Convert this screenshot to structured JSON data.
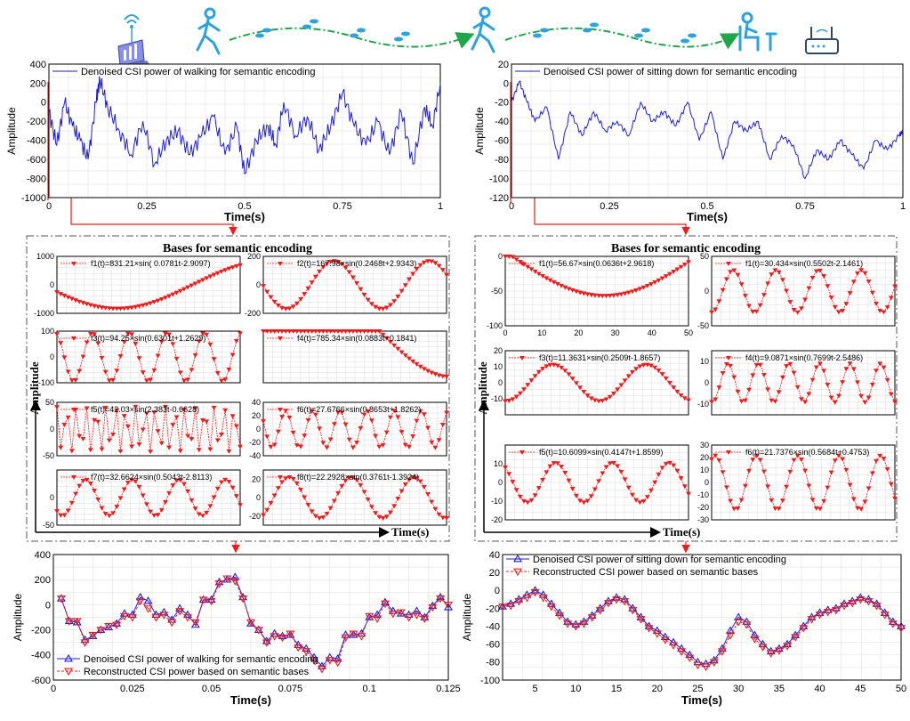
{
  "colors": {
    "blue": "#1f1fd6",
    "red": "#ee1c1c",
    "icon_blue": "#2ba3dd",
    "path_green": "#1fa64a",
    "grid": "#dcdcdc"
  },
  "icons": [
    "laptop-wifi-icon",
    "walking-person-icon",
    "footprints-icon",
    "walking-person-icon",
    "footprints-icon",
    "sitting-person-icon",
    "wifi-router-icon"
  ],
  "left_group_title": "Bases for semantic encoding",
  "right_group_title": "Bases for semantic encoding",
  "left_group_ylabel": "Amplitude",
  "left_group_xlabel": "Time(s)",
  "right_group_ylabel": "Amplitude",
  "right_group_xlabel": "Time(s)",
  "chart_data": [
    {
      "id": "top-left",
      "type": "line",
      "xlabel": "Time(s)",
      "ylabel": "Amplitude",
      "xlim": [
        0,
        1
      ],
      "ylim": [
        -1000,
        400
      ],
      "xticks": [
        "0",
        "0.25",
        "0.5",
        "0.75",
        "1"
      ],
      "yticks": [
        "400",
        "200",
        "0",
        "-200",
        "-400",
        "-600",
        "-800",
        "-1000"
      ],
      "grid": true,
      "legend_position": "top-left",
      "series": [
        {
          "name": "Denoised CSI power of walking for semantic encoding",
          "color": "#1f1fd6",
          "x": [
            0,
            0.02,
            0.04,
            0.06,
            0.08,
            0.1,
            0.12,
            0.13,
            0.15,
            0.18,
            0.21,
            0.24,
            0.27,
            0.3,
            0.33,
            0.36,
            0.39,
            0.42,
            0.45,
            0.48,
            0.5,
            0.53,
            0.56,
            0.58,
            0.6,
            0.63,
            0.66,
            0.69,
            0.72,
            0.75,
            0.78,
            0.81,
            0.84,
            0.87,
            0.9,
            0.93,
            0.96,
            0.98,
            1.0
          ],
          "y": [
            -100,
            -450,
            0,
            -250,
            -400,
            -600,
            0,
            240,
            -50,
            -300,
            -550,
            -200,
            -650,
            -400,
            -300,
            -550,
            -350,
            -150,
            -550,
            -250,
            -750,
            -400,
            -250,
            -450,
            0,
            -350,
            -150,
            -500,
            -250,
            100,
            -250,
            -450,
            -200,
            -550,
            -100,
            -650,
            -50,
            -250,
            200
          ]
        }
      ]
    },
    {
      "id": "top-right",
      "type": "line",
      "xlabel": "Time(s)",
      "ylabel": "Amplitude",
      "xlim": [
        0,
        1
      ],
      "ylim": [
        -120,
        20
      ],
      "xticks": [
        "0",
        "0.25",
        "0.5",
        "0.75",
        "1"
      ],
      "yticks": [
        "20",
        "0",
        "-20",
        "-40",
        "-60",
        "-80",
        "-100",
        "-120"
      ],
      "grid": true,
      "legend_position": "top-left",
      "series": [
        {
          "name": "Denoised CSI power of sitting down for semantic encoding",
          "color": "#1f1fd6",
          "x": [
            0,
            0.02,
            0.04,
            0.06,
            0.09,
            0.12,
            0.15,
            0.18,
            0.21,
            0.24,
            0.27,
            0.3,
            0.33,
            0.36,
            0.39,
            0.42,
            0.45,
            0.48,
            0.51,
            0.54,
            0.57,
            0.6,
            0.63,
            0.66,
            0.69,
            0.72,
            0.75,
            0.78,
            0.81,
            0.84,
            0.87,
            0.9,
            0.93,
            0.96,
            0.99,
            1.0
          ],
          "y": [
            -20,
            2,
            -20,
            -40,
            -25,
            -80,
            -30,
            -55,
            -30,
            -50,
            -40,
            -55,
            -20,
            -40,
            -30,
            -45,
            -20,
            -60,
            -30,
            -80,
            -40,
            -50,
            -40,
            -80,
            -55,
            -65,
            -100,
            -70,
            -80,
            -60,
            -75,
            -90,
            -60,
            -70,
            -55,
            -50
          ]
        }
      ]
    },
    {
      "id": "bl-f1",
      "type": "line",
      "ylim": [
        -1000,
        1000
      ],
      "yticks": [
        "1000",
        "0",
        "-1000"
      ],
      "grid": true,
      "series": [
        {
          "name": "f1(t)=831.21×sin( 0.0781t-2.9097)",
          "A": 831.21,
          "w": 0.0781,
          "p": -2.9097,
          "n": 50,
          "color": "#ee1c1c"
        }
      ]
    },
    {
      "id": "bl-f2",
      "type": "line",
      "ylim": [
        -200,
        200
      ],
      "yticks": [
        "200",
        "0",
        "-200"
      ],
      "grid": true,
      "series": [
        {
          "name": "f2(t)=167.98×sin(0.2468t+2.9343)",
          "A": 167.98,
          "w": 0.2468,
          "p": 2.9343,
          "n": 50,
          "color": "#ee1c1c"
        }
      ]
    },
    {
      "id": "bl-f3",
      "type": "line",
      "ylim": [
        -100,
        100
      ],
      "yticks": [
        "100",
        "0",
        "-100"
      ],
      "grid": true,
      "series": [
        {
          "name": "f3(t)=94.25×sin(0.6301t+1.2629)",
          "A": 94.25,
          "w": 0.6301,
          "p": 1.2629,
          "n": 50,
          "color": "#ee1c1c"
        }
      ]
    },
    {
      "id": "bl-f4",
      "type": "line",
      "ylim": [
        -900,
        100
      ],
      "yticks": [],
      "grid": true,
      "series": [
        {
          "name": "f4(t)=785.34×sin(0.0883t+0.1841)",
          "A": 785.34,
          "w": 0.0883,
          "p": 0.1841,
          "n": 50,
          "color": "#ee1c1c"
        }
      ]
    },
    {
      "id": "bl-f5",
      "type": "line",
      "ylim": [
        -50,
        50
      ],
      "yticks": [
        "50",
        "0",
        "-50"
      ],
      "grid": true,
      "series": [
        {
          "name": "f5(t)=42.03×sin(2.383t-0.6628)",
          "A": 42.03,
          "w": 2.383,
          "p": -0.6628,
          "n": 50,
          "color": "#ee1c1c"
        }
      ]
    },
    {
      "id": "bl-f6",
      "type": "line",
      "ylim": [
        -40,
        40
      ],
      "yticks": [
        "40",
        "20",
        "0",
        "-20",
        "-40"
      ],
      "grid": true,
      "series": [
        {
          "name": "f6(t)=27.6766×sin(0.8653t+1.8262)",
          "A": 27.6766,
          "w": 0.8653,
          "p": 1.8262,
          "n": 50,
          "color": "#ee1c1c"
        }
      ]
    },
    {
      "id": "bl-f7",
      "type": "line",
      "ylim": [
        -50,
        50
      ],
      "yticks": [
        "0",
        "-50"
      ],
      "grid": true,
      "series": [
        {
          "name": "f7(t)=32.6624×sin(0.5043t-2.8113)",
          "A": 32.6624,
          "w": 0.5043,
          "p": -2.8113,
          "n": 50,
          "color": "#ee1c1c"
        }
      ]
    },
    {
      "id": "bl-f8",
      "type": "line",
      "ylim": [
        -30,
        30
      ],
      "yticks": [
        "20",
        "0",
        "-20"
      ],
      "grid": true,
      "series": [
        {
          "name": "f8(t)=22.2928×sin(0.3761t-1.3924)",
          "A": 22.2928,
          "w": 0.3761,
          "p": -1.3924,
          "n": 50,
          "color": "#ee1c1c"
        }
      ]
    },
    {
      "id": "br-f1a",
      "type": "line",
      "xlim": [
        0,
        50
      ],
      "xticks": [
        "0",
        "10",
        "20",
        "30",
        "40",
        "50"
      ],
      "ylim": [
        -100,
        0
      ],
      "yticks": [
        "0",
        "-50",
        "-100"
      ],
      "grid": true,
      "series": [
        {
          "name": "f1(t)=56.67×sin(0.0636t+2.9618)",
          "A": 56.67,
          "w": 0.0636,
          "p": 2.9618,
          "n": 50,
          "color": "#ee1c1c"
        }
      ]
    },
    {
      "id": "br-f1b",
      "type": "line",
      "ylim": [
        -50,
        50
      ],
      "yticks": [
        "50",
        "0",
        "-50"
      ],
      "grid": true,
      "series": [
        {
          "name": "f1(t)=30.434×sin(0.5502t-2.1461)",
          "A": 30.434,
          "w": 0.5502,
          "p": -2.1461,
          "n": 50,
          "color": "#ee1c1c"
        }
      ]
    },
    {
      "id": "br-f3",
      "type": "line",
      "ylim": [
        -20,
        20
      ],
      "yticks": [
        "20",
        "10",
        "0",
        "-10"
      ],
      "grid": true,
      "series": [
        {
          "name": "f3(t)=11.3631×sin(0.2509t-1.8657)",
          "A": 11.3631,
          "w": 0.2509,
          "p": -1.8657,
          "n": 50,
          "color": "#ee1c1c"
        }
      ]
    },
    {
      "id": "br-f4",
      "type": "line",
      "ylim": [
        -15,
        15
      ],
      "yticks": [
        "10",
        "0",
        "-10"
      ],
      "grid": true,
      "series": [
        {
          "name": "f4(t)=9.0871×sin(0.7699t-2.5486)",
          "A": 9.0871,
          "w": 0.7699,
          "p": -2.5486,
          "n": 50,
          "color": "#ee1c1c"
        }
      ]
    },
    {
      "id": "br-f5",
      "type": "line",
      "ylim": [
        -20,
        20
      ],
      "yticks": [
        "10",
        "0",
        "-10",
        "-20"
      ],
      "grid": true,
      "series": [
        {
          "name": "f5(t)=10.6099×sin(0.4147t+1.8599)",
          "A": 10.6099,
          "w": 0.4147,
          "p": 1.8599,
          "n": 50,
          "color": "#ee1c1c"
        }
      ]
    },
    {
      "id": "br-f6",
      "type": "line",
      "ylim": [
        -30,
        30
      ],
      "yticks": [
        "30",
        "20",
        "10",
        "0",
        "-10",
        "-20",
        "-30"
      ],
      "grid": true,
      "series": [
        {
          "name": "f6(t)=21.7376×sin(0.5684t+0.4753)",
          "A": 21.7376,
          "w": 0.5684,
          "p": 0.4753,
          "n": 50,
          "color": "#ee1c1c"
        }
      ]
    },
    {
      "id": "bottom-left",
      "type": "line",
      "xlabel": "Time(s)",
      "ylabel": "Amplitude",
      "xlim": [
        0,
        0.125
      ],
      "ylim": [
        -600,
        400
      ],
      "xticks": [
        "0",
        "0.025",
        "0.05",
        "0.075",
        "0.1",
        "0.125"
      ],
      "yticks": [
        "400",
        "200",
        "0",
        "-200",
        "-400",
        "-600"
      ],
      "grid": true,
      "legend_position": "bottom-left",
      "x": [
        0.0025,
        0.005,
        0.0075,
        0.01,
        0.0125,
        0.015,
        0.0175,
        0.02,
        0.0225,
        0.025,
        0.0275,
        0.03,
        0.0325,
        0.035,
        0.0375,
        0.04,
        0.0425,
        0.045,
        0.0475,
        0.05,
        0.0525,
        0.055,
        0.0575,
        0.06,
        0.0625,
        0.065,
        0.0675,
        0.07,
        0.0725,
        0.075,
        0.0775,
        0.08,
        0.0825,
        0.085,
        0.0875,
        0.09,
        0.0925,
        0.095,
        0.0975,
        0.1,
        0.1025,
        0.105,
        0.1075,
        0.11,
        0.1125,
        0.115,
        0.1175,
        0.12,
        0.1225,
        0.125
      ],
      "series": [
        {
          "name": "Denoised CSI power of walking for semantic encoding",
          "color": "#1f1fd6",
          "marker": "triangle-up",
          "y": [
            50,
            -130,
            -140,
            -280,
            -250,
            -200,
            -180,
            -150,
            -70,
            -80,
            60,
            30,
            -80,
            -60,
            -120,
            -30,
            -80,
            -160,
            40,
            40,
            180,
            200,
            220,
            60,
            -150,
            -200,
            -290,
            -230,
            -250,
            -240,
            -320,
            -350,
            -420,
            -490,
            -420,
            -430,
            -240,
            -240,
            -230,
            -100,
            -80,
            20,
            -50,
            -70,
            -80,
            -50,
            -100,
            -10,
            60,
            -20
          ]
        },
        {
          "name": "Reconstructed CSI power based on semantic bases",
          "color": "#ee1c1c",
          "marker": "triangle-down",
          "y": [
            50,
            -130,
            -130,
            -300,
            -240,
            -200,
            -170,
            -160,
            -90,
            -100,
            30,
            -30,
            -100,
            -80,
            -140,
            -50,
            -100,
            -140,
            40,
            30,
            170,
            210,
            190,
            50,
            -140,
            -200,
            -300,
            -250,
            -260,
            -230,
            -340,
            -370,
            -440,
            -510,
            -440,
            -460,
            -260,
            -230,
            -250,
            -90,
            -110,
            10,
            -70,
            -60,
            -100,
            -80,
            -110,
            -20,
            50,
            0
          ]
        }
      ]
    },
    {
      "id": "bottom-right",
      "type": "line",
      "xlabel": "Time(s)",
      "ylabel": "Amplitude",
      "xlim": [
        1,
        50
      ],
      "ylim": [
        -100,
        40
      ],
      "xticks": [
        "5",
        "10",
        "15",
        "20",
        "25",
        "30",
        "35",
        "40",
        "45",
        "50"
      ],
      "yticks": [
        "40",
        "20",
        "0",
        "-20",
        "-40",
        "-60",
        "-80",
        "-100"
      ],
      "grid": true,
      "legend_position": "top-left",
      "x": [
        1,
        2,
        3,
        4,
        5,
        6,
        7,
        8,
        9,
        10,
        11,
        12,
        13,
        14,
        15,
        16,
        17,
        18,
        19,
        20,
        21,
        22,
        23,
        24,
        25,
        26,
        27,
        28,
        29,
        30,
        31,
        32,
        33,
        34,
        35,
        36,
        37,
        38,
        39,
        40,
        41,
        42,
        43,
        44,
        45,
        46,
        47,
        48,
        49,
        50
      ],
      "series": [
        {
          "name": "Denoised CSI power of sitting down for semantic encoding",
          "color": "#1f1fd6",
          "marker": "triangle-up",
          "y": [
            -18,
            -15,
            -10,
            -5,
            0,
            -5,
            -15,
            -25,
            -35,
            -38,
            -35,
            -28,
            -20,
            -12,
            -8,
            -10,
            -20,
            -30,
            -40,
            -45,
            -52,
            -58,
            -65,
            -72,
            -80,
            -82,
            -78,
            -65,
            -45,
            -30,
            -35,
            -50,
            -60,
            -68,
            -65,
            -60,
            -50,
            -40,
            -30,
            -25,
            -22,
            -20,
            -15,
            -12,
            -8,
            -10,
            -15,
            -25,
            -35,
            -40
          ]
        },
        {
          "name": "Reconstructed CSI power based on semantic bases",
          "color": "#ee1c1c",
          "marker": "triangle-down",
          "y": [
            -18,
            -17,
            -12,
            -8,
            -2,
            -8,
            -18,
            -28,
            -37,
            -40,
            -37,
            -30,
            -22,
            -14,
            -10,
            -12,
            -22,
            -32,
            -42,
            -48,
            -55,
            -61,
            -68,
            -75,
            -83,
            -85,
            -80,
            -68,
            -50,
            -35,
            -38,
            -54,
            -63,
            -70,
            -67,
            -62,
            -52,
            -42,
            -32,
            -27,
            -24,
            -22,
            -17,
            -14,
            -10,
            -12,
            -17,
            -27,
            -37,
            -42
          ]
        }
      ]
    }
  ]
}
